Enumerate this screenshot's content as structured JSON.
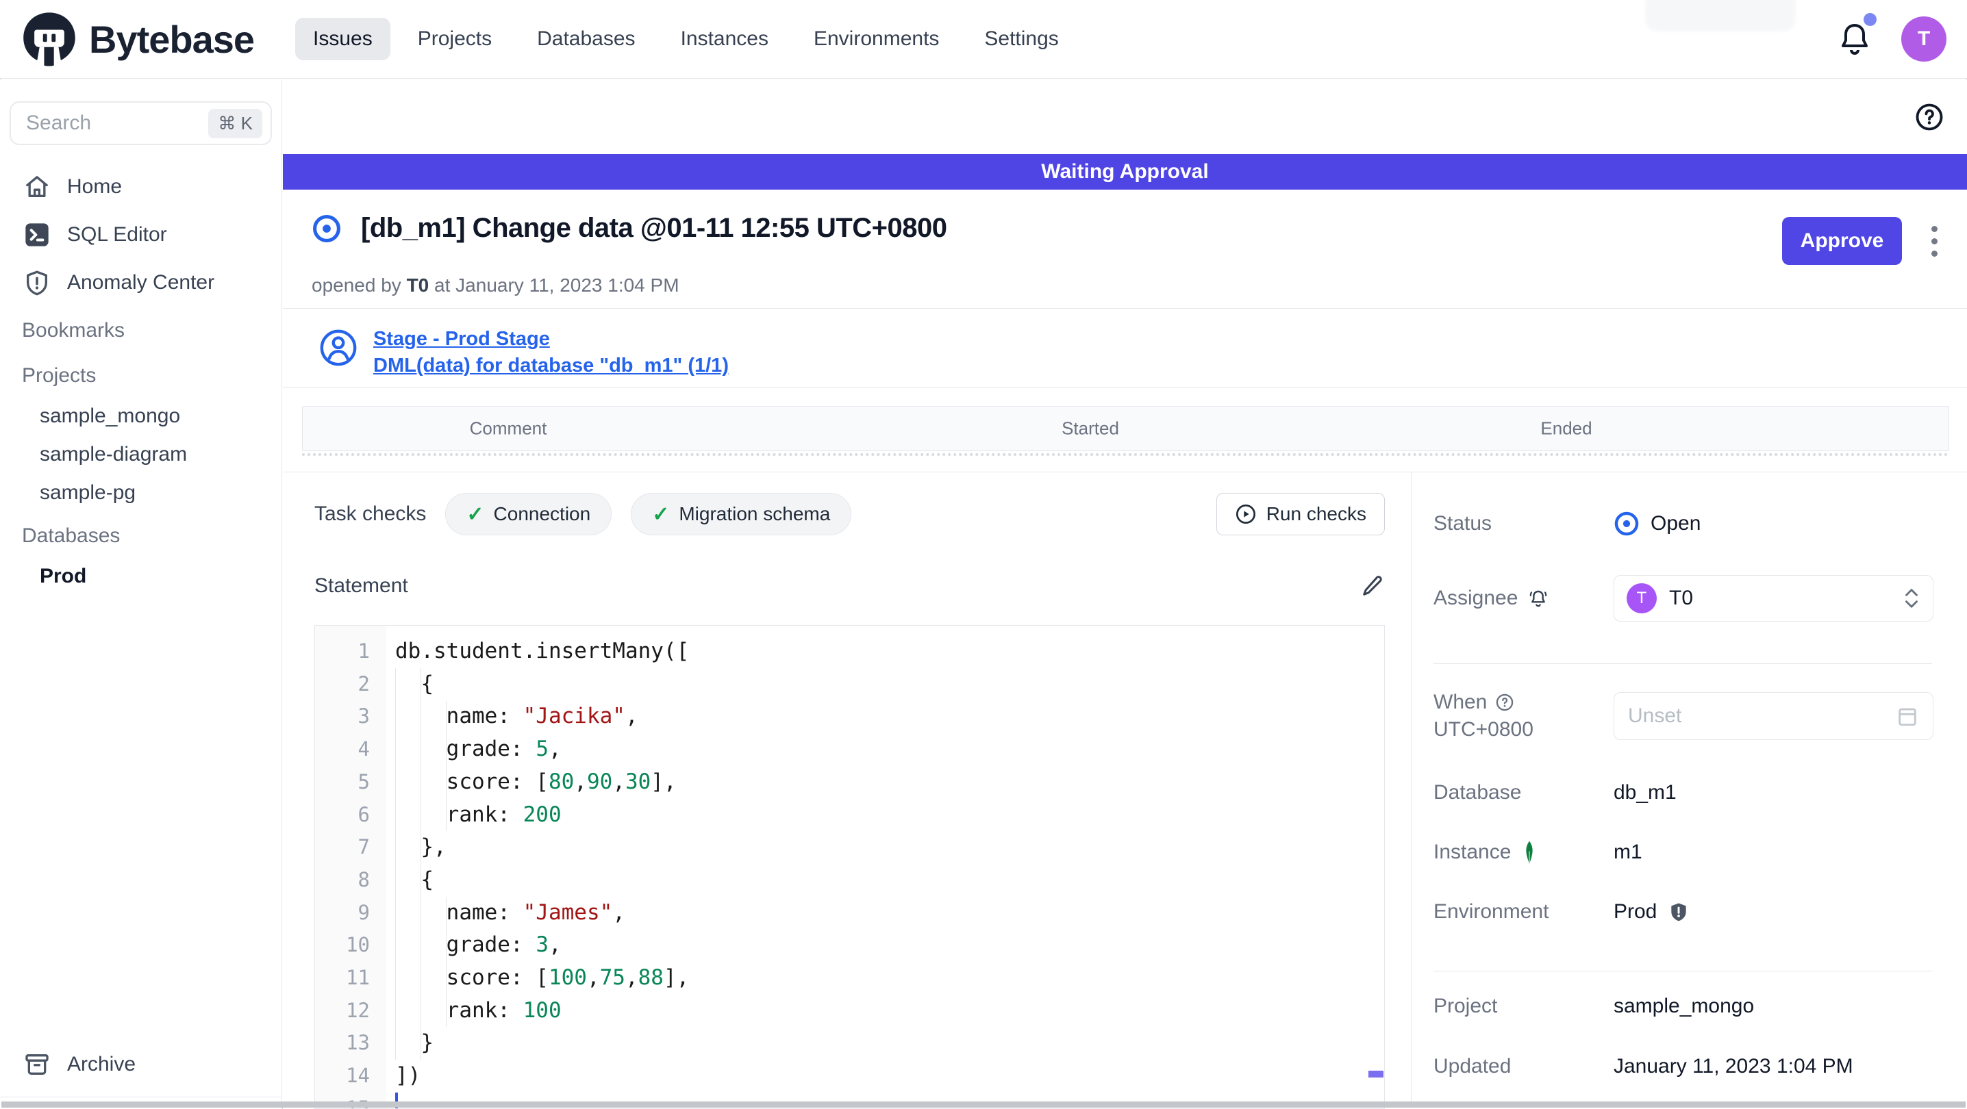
{
  "brand": {
    "name": "Bytebase"
  },
  "topbar": {
    "avatar_initial": "T"
  },
  "nav": {
    "items": [
      "Issues",
      "Projects",
      "Databases",
      "Instances",
      "Environments",
      "Settings"
    ],
    "active": "Issues"
  },
  "sidebar": {
    "search": {
      "placeholder": "Search",
      "shortcut": "⌘ K"
    },
    "items": [
      {
        "label": "Home"
      },
      {
        "label": "SQL Editor"
      },
      {
        "label": "Anomaly Center"
      }
    ],
    "bookmarks_heading": "Bookmarks",
    "projects_heading": "Projects",
    "projects": [
      "sample_mongo",
      "sample-diagram",
      "sample-pg"
    ],
    "databases_heading": "Databases",
    "databases": [
      "Prod"
    ],
    "archive_label": "Archive"
  },
  "banner": {
    "text": "Waiting Approval"
  },
  "issue": {
    "title": "[db_m1] Change data @01-11 12:55 UTC+0800",
    "opened_prefix": "opened by",
    "author": "T0",
    "opened_suffix": " at January 11, 2023 1:04 PM",
    "approve_label": "Approve",
    "stage_link": "Stage - Prod Stage",
    "task_link": "DML(data) for database \"db_m1\" (1/1)"
  },
  "activity_table": {
    "headers": [
      "Comment",
      "Started",
      "Ended"
    ]
  },
  "task_checks": {
    "label": "Task checks",
    "items": [
      "Connection",
      "Migration schema"
    ],
    "run_label": "Run checks"
  },
  "statement": {
    "label": "Statement",
    "lines": [
      [
        [
          "p",
          "db.student.insertMany(["
        ]
      ],
      [
        [
          "p",
          "  {"
        ]
      ],
      [
        [
          "p",
          "    name: "
        ],
        [
          "s",
          "\"Jacika\""
        ],
        [
          "p",
          ","
        ]
      ],
      [
        [
          "p",
          "    grade: "
        ],
        [
          "n",
          "5"
        ],
        [
          "p",
          ","
        ]
      ],
      [
        [
          "p",
          "    score: ["
        ],
        [
          "n",
          "80"
        ],
        [
          "p",
          ","
        ],
        [
          "n",
          "90"
        ],
        [
          "p",
          ","
        ],
        [
          "n",
          "30"
        ],
        [
          "p",
          "],"
        ]
      ],
      [
        [
          "p",
          "    rank: "
        ],
        [
          "n",
          "200"
        ]
      ],
      [
        [
          "p",
          "  },"
        ]
      ],
      [
        [
          "p",
          "  {"
        ]
      ],
      [
        [
          "p",
          "    name: "
        ],
        [
          "s",
          "\"James\""
        ],
        [
          "p",
          ","
        ]
      ],
      [
        [
          "p",
          "    grade: "
        ],
        [
          "n",
          "3"
        ],
        [
          "p",
          ","
        ]
      ],
      [
        [
          "p",
          "    score: ["
        ],
        [
          "n",
          "100"
        ],
        [
          "p",
          ","
        ],
        [
          "n",
          "75"
        ],
        [
          "p",
          ","
        ],
        [
          "n",
          "88"
        ],
        [
          "p",
          "],"
        ]
      ],
      [
        [
          "p",
          "    rank: "
        ],
        [
          "n",
          "100"
        ]
      ],
      [
        [
          "p",
          "  }"
        ]
      ],
      [
        [
          "p",
          "])"
        ]
      ],
      [
        [
          "p",
          ""
        ]
      ]
    ]
  },
  "details": {
    "status_label": "Status",
    "status_value": "Open",
    "assignee_label": "Assignee",
    "assignee_value": "T0",
    "assignee_initial": "T",
    "when_label": "When",
    "when_tz": "UTC+0800",
    "when_placeholder": "Unset",
    "database_label": "Database",
    "database_value": "db_m1",
    "instance_label": "Instance",
    "instance_value": "m1",
    "environment_label": "Environment",
    "environment_value": "Prod",
    "project_label": "Project",
    "project_value": "sample_mongo",
    "updated_label": "Updated",
    "updated_value": "January 11, 2023 1:04 PM"
  },
  "colors": {
    "banner": "#4f44e4",
    "accent": "#4f46e5",
    "link": "#2563eb",
    "avatar": "#b15ce6",
    "check_green": "#16a34a",
    "code_string": "#a31515",
    "code_number": "#098658"
  }
}
